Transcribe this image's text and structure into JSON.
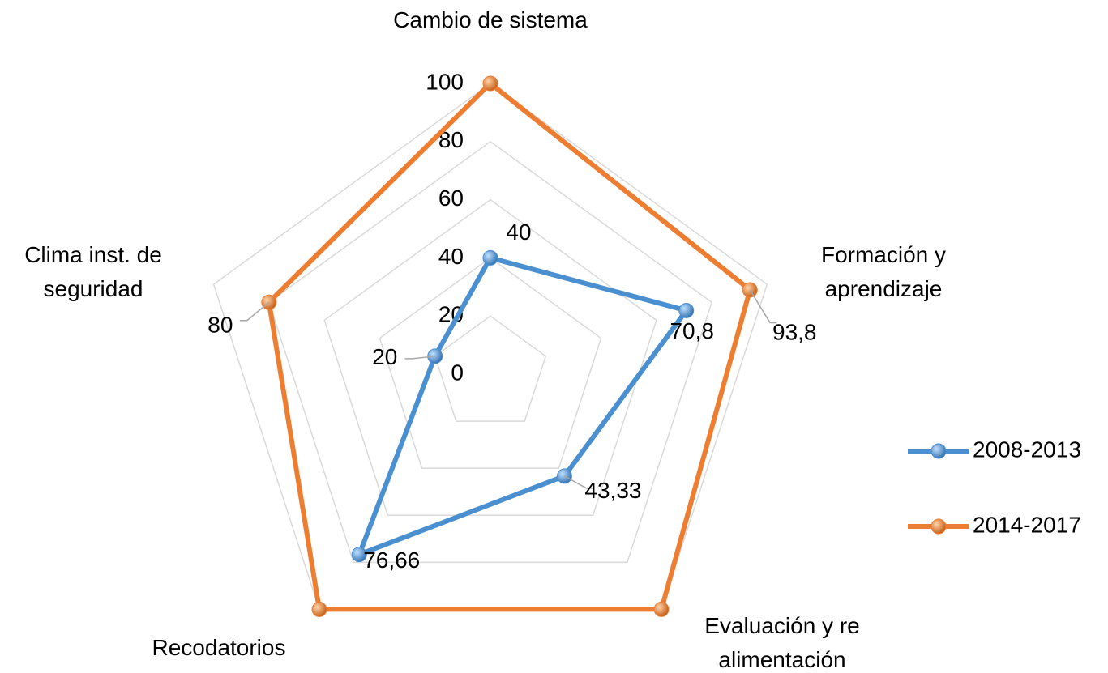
{
  "chart_data": {
    "type": "radar",
    "categories": [
      "Cambio de sistema",
      "Formación y aprendizaje",
      "Evaluación y re alimentación",
      "Recodatorios",
      "Clima inst. de seguridad"
    ],
    "series": [
      {
        "name": "2008-2013",
        "color": "#4a8fd0",
        "values": [
          40,
          70.8,
          43.33,
          76.66,
          20
        ],
        "value_labels": [
          "40",
          "70,8",
          "43,33",
          "76,66",
          "20"
        ]
      },
      {
        "name": "2014-2017",
        "color": "#ed7d31",
        "values": [
          100,
          93.8,
          100,
          100,
          80
        ],
        "value_labels": [
          null,
          "93,8",
          null,
          null,
          "80"
        ]
      }
    ],
    "rlim": [
      0,
      100
    ],
    "rticks": [
      0,
      20,
      40,
      60,
      80,
      100
    ],
    "grid": true,
    "legend": "right"
  }
}
